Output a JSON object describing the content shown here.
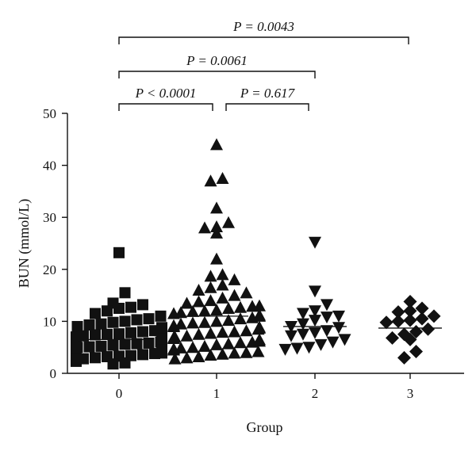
{
  "chart_data": {
    "type": "scatter",
    "xlabel": "Group",
    "ylabel": "BUN (mmol/L)",
    "ylim": [
      0,
      50
    ],
    "yticks": [
      0,
      10,
      20,
      30,
      40,
      50
    ],
    "categories": [
      "0",
      "1",
      "2",
      "3"
    ],
    "grid": false,
    "legend": "none",
    "comparisons": [
      {
        "from": "0",
        "to": "1",
        "label": "P < 0.0001"
      },
      {
        "from": "1",
        "to": "2",
        "label": "P = 0.617"
      },
      {
        "from": "0",
        "to": "2",
        "label": "P = 0.0061"
      },
      {
        "from": "0",
        "to": "3",
        "label": "P = 0.0043"
      }
    ],
    "series": [
      {
        "category": "0",
        "marker": "square",
        "mean": 6.5,
        "values": [
          23.2,
          15.5,
          13.5,
          13.2,
          12.7,
          12.0,
          11.0,
          10.5,
          10.3,
          9.8,
          9.3,
          9.0,
          8.7,
          8.5,
          8.2,
          8.0,
          7.8,
          7.6,
          7.4,
          7.2,
          7.0,
          6.8,
          6.6,
          6.4,
          6.2,
          6.0,
          5.8,
          5.6,
          5.4,
          5.2,
          5.0,
          4.8,
          4.6,
          4.4,
          4.2,
          4.0,
          3.8,
          3.6,
          3.4,
          3.2,
          3.0,
          2.8,
          2.6,
          2.3,
          2.0,
          1.8,
          7.5,
          6.9,
          6.3,
          5.7,
          5.1,
          4.5,
          3.9,
          3.3,
          2.7,
          8.8,
          9.5,
          10.0,
          11.5,
          12.5
        ]
      },
      {
        "category": "1",
        "marker": "triangle-up",
        "mean": 11.0,
        "values": [
          44.0,
          37.5,
          37.0,
          31.8,
          29.0,
          28.2,
          28.0,
          27.0,
          22.0,
          19.0,
          18.7,
          18.0,
          17.0,
          16.5,
          16.0,
          15.5,
          15.0,
          14.5,
          14.0,
          13.5,
          13.0,
          12.7,
          12.5,
          12.2,
          12.0,
          11.7,
          11.5,
          11.2,
          11.0,
          10.7,
          10.5,
          10.2,
          10.0,
          9.7,
          9.5,
          9.2,
          9.0,
          8.7,
          8.5,
          8.2,
          8.0,
          7.7,
          7.5,
          7.2,
          7.0,
          6.7,
          6.5,
          6.2,
          6.0,
          5.7,
          5.5,
          5.2,
          5.0,
          4.7,
          4.5,
          4.2,
          4.0,
          3.7,
          3.5,
          3.2,
          3.0,
          2.8,
          9.8,
          8.9,
          7.9,
          6.9,
          5.9,
          4.9,
          3.9,
          13.8,
          12.9,
          11.9
        ]
      },
      {
        "category": "2",
        "marker": "triangle-down",
        "mean": 9.0,
        "values": [
          25.2,
          15.8,
          13.2,
          12.0,
          11.5,
          11.0,
          10.8,
          10.2,
          9.5,
          9.0,
          8.8,
          8.2,
          7.8,
          7.5,
          7.2,
          6.5,
          6.0,
          5.5,
          5.0,
          4.8,
          4.6
        ]
      },
      {
        "category": "3",
        "marker": "diamond",
        "mean": 8.7,
        "values": [
          13.8,
          12.5,
          12.0,
          11.8,
          11.0,
          10.5,
          10.2,
          10.0,
          9.8,
          8.5,
          8.0,
          7.5,
          6.8,
          6.5,
          4.2,
          3.0
        ]
      }
    ]
  }
}
